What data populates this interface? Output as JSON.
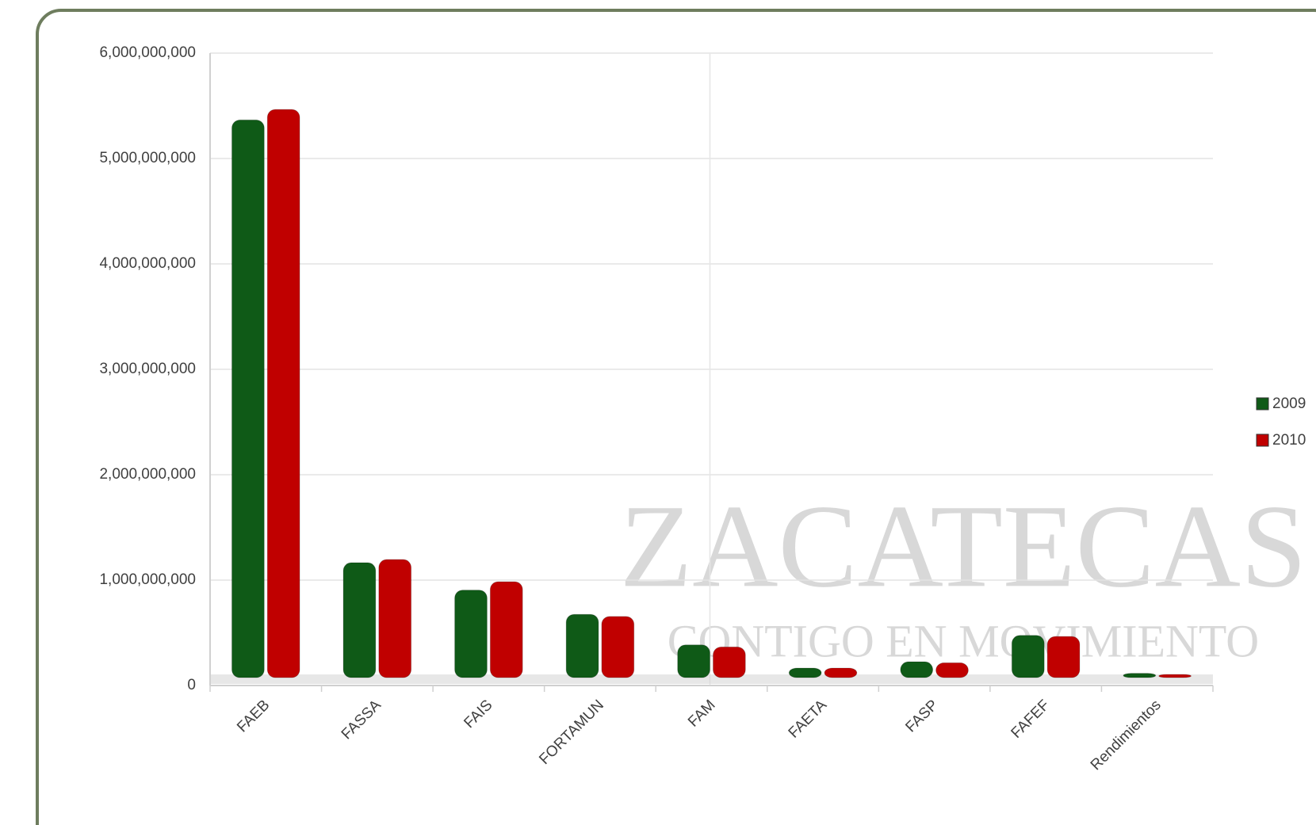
{
  "chart_data": {
    "type": "bar",
    "categories": [
      "FAEB",
      "FASSA",
      "FAIS",
      "FORTAMUN",
      "FAM",
      "FAETA",
      "FASP",
      "FAFEF",
      "Rendimientos"
    ],
    "series": [
      {
        "name": "2009",
        "color": "#0f5a17",
        "values": [
          5290000000,
          1090000000,
          830000000,
          600000000,
          310000000,
          90000000,
          150000000,
          400000000,
          40000000
        ]
      },
      {
        "name": "2010",
        "color": "#c00000",
        "values": [
          5390000000,
          1120000000,
          910000000,
          580000000,
          290000000,
          90000000,
          140000000,
          390000000,
          30000000
        ]
      }
    ],
    "ylim": [
      0,
      6000000000
    ],
    "yticks": [
      0,
      {
        "value": 1000000000,
        "label": "1,000,000,000"
      },
      {
        "value": 2000000000,
        "label": "2,000,000,000"
      },
      {
        "value": 3000000000,
        "label": "3,000,000,000"
      },
      {
        "value": 4000000000,
        "label": "4,000,000,000"
      },
      {
        "value": 5000000000,
        "label": "5,000,000,000"
      },
      {
        "value": 6000000000,
        "label": "6,000,000,000"
      }
    ],
    "grid": true,
    "legend": "right",
    "watermark": [
      "ZACATECAS",
      "CONTIGO EN MOVIMIENTO"
    ]
  }
}
